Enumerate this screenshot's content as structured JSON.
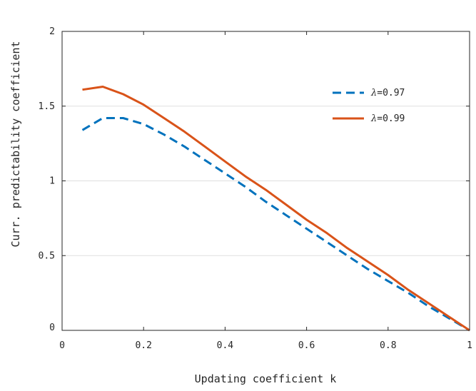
{
  "chart_data": {
    "type": "line",
    "title": "",
    "xlabel": "Updating coefficient k",
    "ylabel": "Curr. predictability coefficient",
    "xlim": [
      0,
      1
    ],
    "ylim": [
      0,
      2
    ],
    "xticks": [
      0,
      0.2,
      0.4,
      0.6,
      0.8,
      1
    ],
    "xtick_labels": [
      "0",
      "0.2",
      "0.4",
      "0.6",
      "0.8",
      "1"
    ],
    "yticks": [
      0,
      0.5,
      1,
      1.5,
      2
    ],
    "ytick_labels": [
      "0",
      "0.5",
      "1",
      "1.5",
      "2"
    ],
    "grid": "horizontal",
    "legend_position": "top-right",
    "x": [
      0.05,
      0.1,
      0.15,
      0.2,
      0.25,
      0.3,
      0.35,
      0.4,
      0.45,
      0.5,
      0.55,
      0.6,
      0.65,
      0.7,
      0.75,
      0.8,
      0.85,
      0.9,
      0.95,
      1.0
    ],
    "series": [
      {
        "name": "λ=0.97",
        "legend_symbol": "λ",
        "legend_value": "=0.97",
        "color": "#0072BD",
        "style": "dashed",
        "values": [
          1.34,
          1.42,
          1.42,
          1.38,
          1.31,
          1.23,
          1.14,
          1.05,
          0.96,
          0.86,
          0.77,
          0.68,
          0.59,
          0.5,
          0.41,
          0.33,
          0.25,
          0.16,
          0.08,
          0.0
        ]
      },
      {
        "name": "λ=0.99",
        "legend_symbol": "λ",
        "legend_value": "=0.99",
        "color": "#D95319",
        "style": "solid",
        "values": [
          1.61,
          1.63,
          1.58,
          1.51,
          1.42,
          1.33,
          1.23,
          1.13,
          1.03,
          0.94,
          0.84,
          0.74,
          0.65,
          0.55,
          0.46,
          0.37,
          0.27,
          0.18,
          0.09,
          0.0
        ]
      }
    ]
  }
}
